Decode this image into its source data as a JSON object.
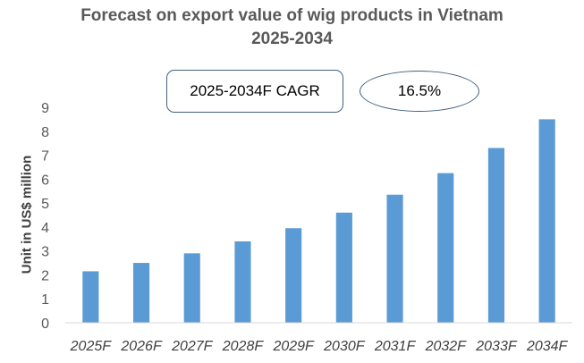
{
  "chart_data": {
    "type": "bar",
    "title_lines": [
      "Forecast on export value of wig products in Vietnam",
      "2025-2034"
    ],
    "ylabel": "Unit in US$ million",
    "xlabel": "",
    "ylim": [
      0,
      9
    ],
    "yticks": [
      "0",
      "1",
      "2",
      "3",
      "4",
      "5",
      "6",
      "7",
      "8",
      "9"
    ],
    "categories": [
      "2025F",
      "2026F",
      "2027F",
      "2028F",
      "2029F",
      "2030F",
      "2031F",
      "2032F",
      "2033F",
      "2034F"
    ],
    "values": [
      2.15,
      2.5,
      2.9,
      3.4,
      3.95,
      4.6,
      5.35,
      6.25,
      7.3,
      8.5
    ],
    "bar_color": "#5b9bd5",
    "grid": false,
    "legend": "none"
  },
  "annotation": {
    "cagr_label": "2025-2034F CAGR",
    "cagr_value": "16.5%",
    "border_color": "#41617e"
  }
}
